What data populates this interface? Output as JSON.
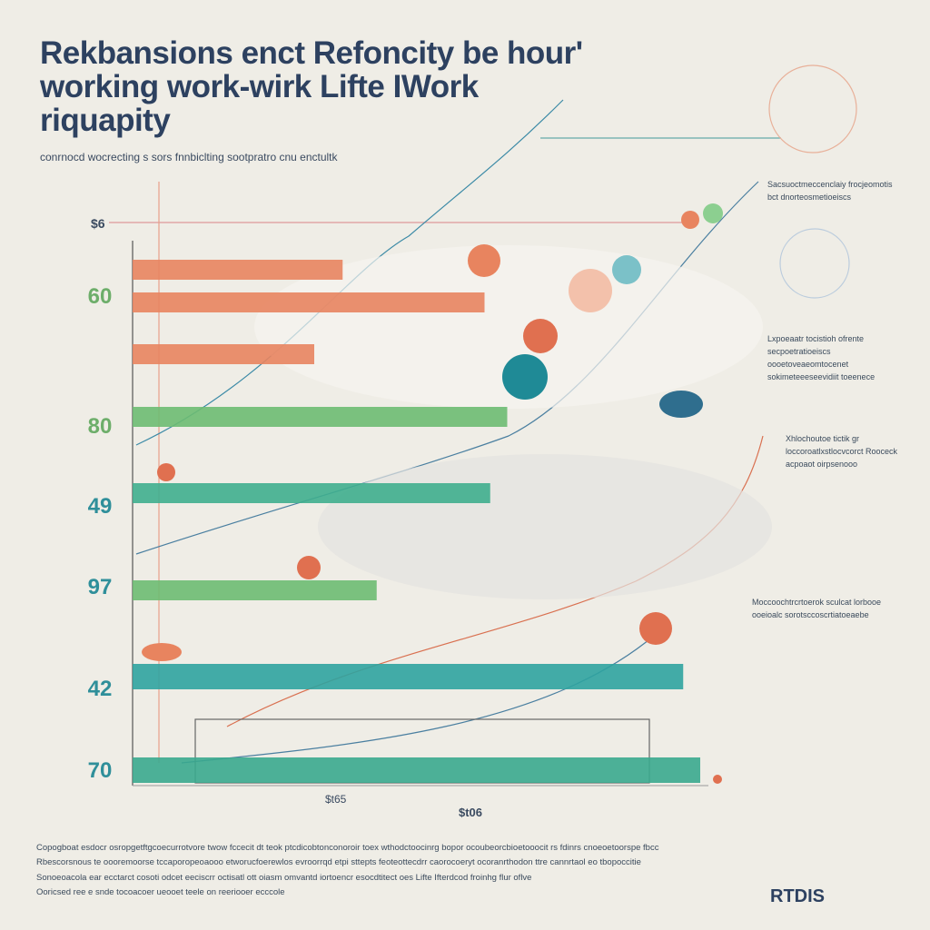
{
  "chart_data": {
    "type": "bar",
    "orientation": "horizontal",
    "title": "Rekbansions enct Refoncity be hour' working work-wirk Lifte IWork riquapity",
    "subtitle": "conrnocd wocrecting s sors fnnbiclting sootpratro cnu enctultk",
    "categories": [
      null,
      "60",
      null,
      "80",
      "49",
      "97",
      "42",
      "70"
    ],
    "values": [
      37,
      62,
      32,
      66,
      63,
      43,
      97,
      100
    ],
    "colors": [
      "#e8845f",
      "#e8845f",
      "#e8845f",
      "#6dbb72",
      "#3fae8e",
      "#6dbb72",
      "#2fa3a0",
      "#3aa88e"
    ],
    "axis_labels": [
      "$6",
      "$t65",
      "$t06"
    ],
    "annotations": [
      "Sacsuoctmeccenclaiy frocjeomotis bct dnorteosmetioeiscs",
      "Lxpoeaatr tocistioh ofrente secpoetratioeiscs oooetoveaeomtocenet sokimeteeeseevidiit toeenece",
      "Xhlochoutoe tictik gr loccoroatlxstlocvcorct Rooceck acpoaot oirpsenooo",
      "Moccoochtrcrtoerok sculcat lorbooe ooeioalc sorotsccoscrtiatoeaebe"
    ],
    "footer": [
      "Copogboat esdocr osropgetftgcoecurrotvore twow fccecit dt teok ptcdicobtonconoroir toex wthodctoocinrg bopor ocoubeorcbioetooocit rs fdinrs cnoeoetoorspe fbcc",
      "Rbescorsnous te oooremoorse tccaporopeoaooo etworucfoerewlos evroorrqd etpi sttepts feoteottecdrr caorocoeryt ocoranrthodon ttre cannrtaol eo tbopoccitie",
      "Sonoeoacola ear ecctarct cosoti odcet eeciscrr octisatl ott oiasm omvantd iortoencr esocdtitect oes Lifte Ifterdcod froinhg flur oflve",
      "Ooricsed ree e snde tocoacoer ueooet teele on reeriooer ecccole"
    ],
    "logo": "RTDIS"
  }
}
